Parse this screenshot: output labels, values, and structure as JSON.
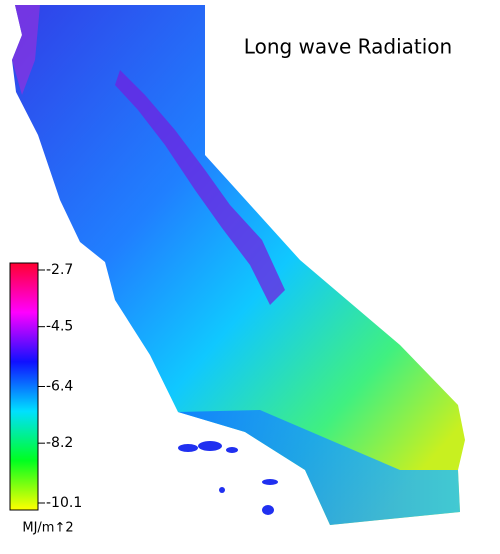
{
  "title": "Long wave Radiation",
  "colorbar": {
    "ticks": [
      -2.7,
      -4.5,
      -6.4,
      -8.2,
      -10.1
    ],
    "label": "MJ/m↑2",
    "colors": [
      "#ff0030",
      "#ff00ff",
      "#1010ff",
      "#00e0ff",
      "#00ff20",
      "#ffff00"
    ]
  }
}
